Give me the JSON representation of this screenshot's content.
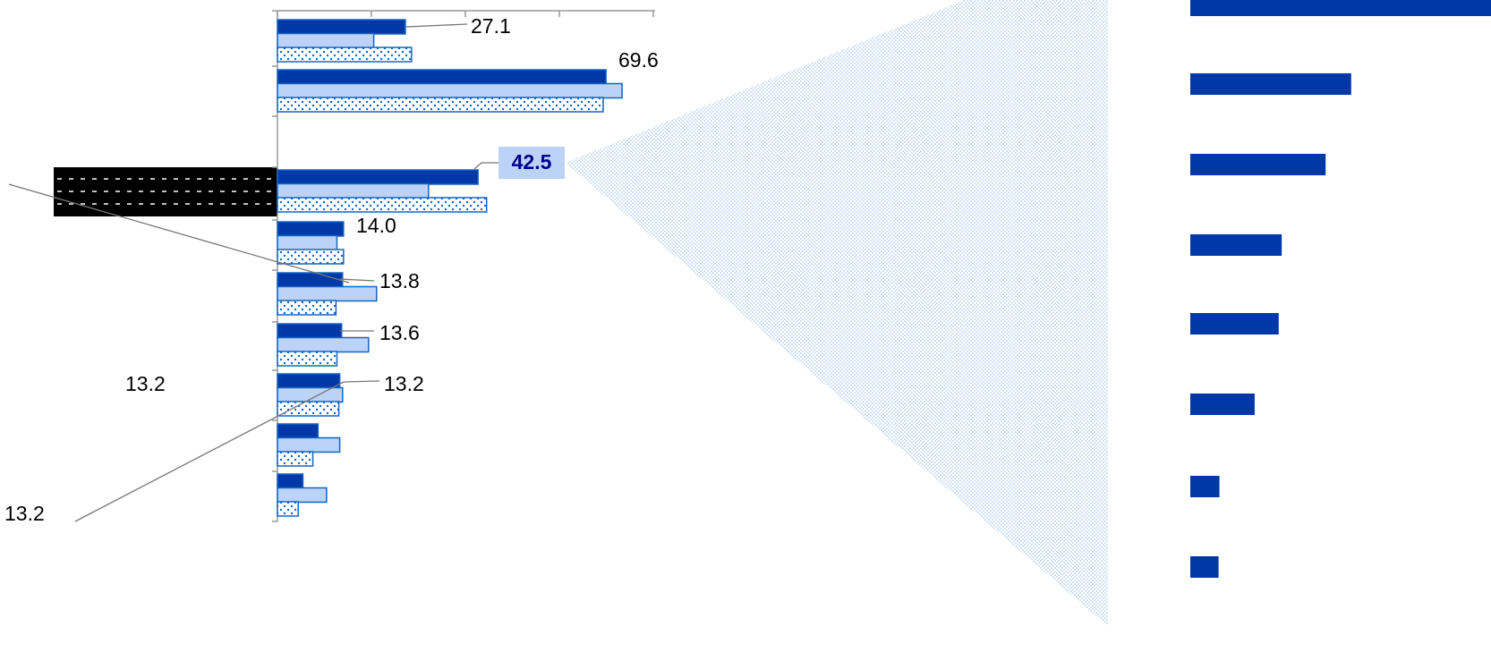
{
  "chart_data": [
    {
      "type": "bar",
      "orientation": "horizontal",
      "title": "",
      "xlabel": "",
      "ylabel": "",
      "xlim": [
        0,
        80
      ],
      "grid": false,
      "legend": "none",
      "series_colors": [
        "#0038a8",
        "#bcd3f7",
        "#ffffff"
      ],
      "series": [
        {
          "values": [
            27.1,
            20.4,
            28.4,
            69.6,
            73.0,
            69.0,
            42.5,
            32.0,
            44.3,
            14.0,
            12.6,
            14.0,
            13.8,
            21.0,
            12.4,
            13.6,
            19.3,
            12.6,
            13.2,
            13.8,
            13.0,
            8.6,
            13.2,
            7.5,
            5.4,
            10.4,
            4.4
          ]
        }
      ],
      "data_labels": [
        {
          "text": "27.1",
          "highlight": false
        },
        {
          "text": "69.6",
          "highlight": false
        },
        {
          "text": "42.5",
          "highlight": true
        },
        {
          "text": "14.0",
          "highlight": false
        },
        {
          "text": "13.8",
          "highlight": false
        },
        {
          "text": "13.6",
          "highlight": false
        },
        {
          "text": "13.2",
          "highlight": false
        }
      ],
      "stray_labels": [
        "13.2",
        "13.2"
      ]
    },
    {
      "type": "bar",
      "orientation": "horizontal",
      "title": "",
      "xlabel": "",
      "ylabel": "",
      "grid": false,
      "legend": "none",
      "bar_color": "#0038a8",
      "values": [
        100,
        53.5,
        45.0,
        30.4,
        29.4,
        21.4,
        9.7,
        9.4
      ]
    }
  ]
}
